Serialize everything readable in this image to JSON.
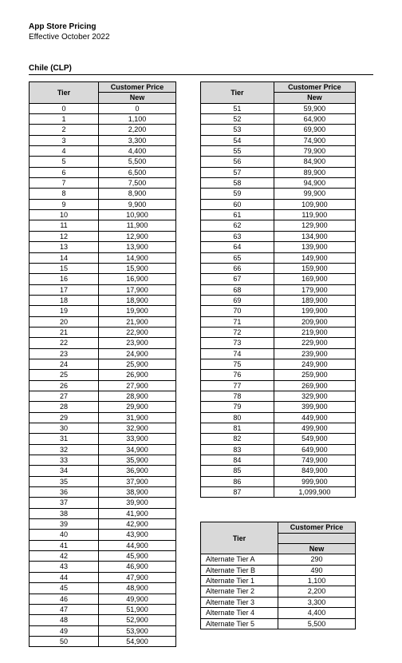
{
  "header": {
    "title": "App Store Pricing",
    "subtitle": "Effective October 2022"
  },
  "country_label": "Chile (CLP)",
  "table_headers": {
    "tier": "Tier",
    "price_top": "Customer Price",
    "price_bottom": "New"
  },
  "left_rows": [
    {
      "tier": "0",
      "price": "0"
    },
    {
      "tier": "1",
      "price": "1,100"
    },
    {
      "tier": "2",
      "price": "2,200"
    },
    {
      "tier": "3",
      "price": "3,300"
    },
    {
      "tier": "4",
      "price": "4,400"
    },
    {
      "tier": "5",
      "price": "5,500"
    },
    {
      "tier": "6",
      "price": "6,500"
    },
    {
      "tier": "7",
      "price": "7,500"
    },
    {
      "tier": "8",
      "price": "8,900"
    },
    {
      "tier": "9",
      "price": "9,900"
    },
    {
      "tier": "10",
      "price": "10,900"
    },
    {
      "tier": "11",
      "price": "11,900"
    },
    {
      "tier": "12",
      "price": "12,900"
    },
    {
      "tier": "13",
      "price": "13,900"
    },
    {
      "tier": "14",
      "price": "14,900"
    },
    {
      "tier": "15",
      "price": "15,900"
    },
    {
      "tier": "16",
      "price": "16,900"
    },
    {
      "tier": "17",
      "price": "17,900"
    },
    {
      "tier": "18",
      "price": "18,900"
    },
    {
      "tier": "19",
      "price": "19,900"
    },
    {
      "tier": "20",
      "price": "21,900"
    },
    {
      "tier": "21",
      "price": "22,900"
    },
    {
      "tier": "22",
      "price": "23,900"
    },
    {
      "tier": "23",
      "price": "24,900"
    },
    {
      "tier": "24",
      "price": "25,900"
    },
    {
      "tier": "25",
      "price": "26,900"
    },
    {
      "tier": "26",
      "price": "27,900"
    },
    {
      "tier": "27",
      "price": "28,900"
    },
    {
      "tier": "28",
      "price": "29,900"
    },
    {
      "tier": "29",
      "price": "31,900"
    },
    {
      "tier": "30",
      "price": "32,900"
    },
    {
      "tier": "31",
      "price": "33,900"
    },
    {
      "tier": "32",
      "price": "34,900"
    },
    {
      "tier": "33",
      "price": "35,900"
    },
    {
      "tier": "34",
      "price": "36,900"
    },
    {
      "tier": "35",
      "price": "37,900"
    },
    {
      "tier": "36",
      "price": "38,900"
    },
    {
      "tier": "37",
      "price": "39,900"
    },
    {
      "tier": "38",
      "price": "41,900"
    },
    {
      "tier": "39",
      "price": "42,900"
    },
    {
      "tier": "40",
      "price": "43,900"
    },
    {
      "tier": "41",
      "price": "44,900"
    },
    {
      "tier": "42",
      "price": "45,900"
    },
    {
      "tier": "43",
      "price": "46,900"
    },
    {
      "tier": "44",
      "price": "47,900"
    },
    {
      "tier": "45",
      "price": "48,900"
    },
    {
      "tier": "46",
      "price": "49,900"
    },
    {
      "tier": "47",
      "price": "51,900"
    },
    {
      "tier": "48",
      "price": "52,900"
    },
    {
      "tier": "49",
      "price": "53,900"
    },
    {
      "tier": "50",
      "price": "54,900"
    }
  ],
  "right_rows": [
    {
      "tier": "51",
      "price": "59,900"
    },
    {
      "tier": "52",
      "price": "64,900"
    },
    {
      "tier": "53",
      "price": "69,900"
    },
    {
      "tier": "54",
      "price": "74,900"
    },
    {
      "tier": "55",
      "price": "79,900"
    },
    {
      "tier": "56",
      "price": "84,900"
    },
    {
      "tier": "57",
      "price": "89,900"
    },
    {
      "tier": "58",
      "price": "94,900"
    },
    {
      "tier": "59",
      "price": "99,900"
    },
    {
      "tier": "60",
      "price": "109,900"
    },
    {
      "tier": "61",
      "price": "119,900"
    },
    {
      "tier": "62",
      "price": "129,900"
    },
    {
      "tier": "63",
      "price": "134,900"
    },
    {
      "tier": "64",
      "price": "139,900"
    },
    {
      "tier": "65",
      "price": "149,900"
    },
    {
      "tier": "66",
      "price": "159,900"
    },
    {
      "tier": "67",
      "price": "169,900"
    },
    {
      "tier": "68",
      "price": "179,900"
    },
    {
      "tier": "69",
      "price": "189,900"
    },
    {
      "tier": "70",
      "price": "199,900"
    },
    {
      "tier": "71",
      "price": "209,900"
    },
    {
      "tier": "72",
      "price": "219,900"
    },
    {
      "tier": "73",
      "price": "229,900"
    },
    {
      "tier": "74",
      "price": "239,900"
    },
    {
      "tier": "75",
      "price": "249,900"
    },
    {
      "tier": "76",
      "price": "259,900"
    },
    {
      "tier": "77",
      "price": "269,900"
    },
    {
      "tier": "78",
      "price": "329,900"
    },
    {
      "tier": "79",
      "price": "399,900"
    },
    {
      "tier": "80",
      "price": "449,900"
    },
    {
      "tier": "81",
      "price": "499,900"
    },
    {
      "tier": "82",
      "price": "549,900"
    },
    {
      "tier": "83",
      "price": "649,900"
    },
    {
      "tier": "84",
      "price": "749,900"
    },
    {
      "tier": "85",
      "price": "849,900"
    },
    {
      "tier": "86",
      "price": "999,900"
    },
    {
      "tier": "87",
      "price": "1,099,900"
    }
  ],
  "alt_rows": [
    {
      "tier": "Alternate Tier A",
      "price": "290"
    },
    {
      "tier": "Alternate Tier B",
      "price": "490"
    },
    {
      "tier": "Alternate Tier 1",
      "price": "1,100"
    },
    {
      "tier": "Alternate Tier 2",
      "price": "2,200"
    },
    {
      "tier": "Alternate Tier 3",
      "price": "3,300"
    },
    {
      "tier": "Alternate Tier 4",
      "price": "4,400"
    },
    {
      "tier": "Alternate Tier 5",
      "price": "5,500"
    }
  ]
}
